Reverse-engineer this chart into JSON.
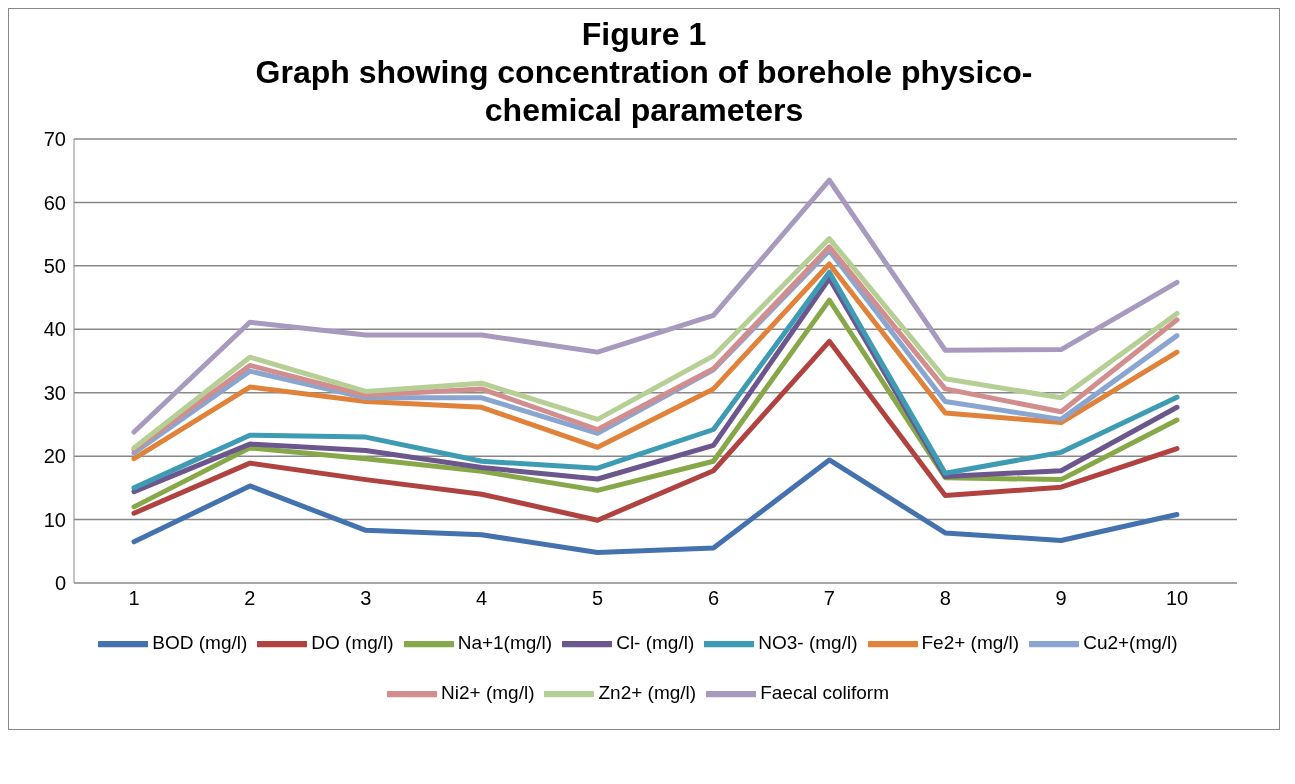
{
  "chart_data": {
    "type": "line",
    "title": "Figure 1",
    "subtitle": "Graph showing concentration of borehole physico-chemical parameters",
    "categories": [
      "1",
      "2",
      "3",
      "4",
      "5",
      "6",
      "7",
      "8",
      "9",
      "10"
    ],
    "series": [
      {
        "name": "BOD (mg/l)",
        "color": "#4372ae",
        "values": [
          6.5,
          15.3,
          8.3,
          7.6,
          4.8,
          5.5,
          19.4,
          7.9,
          6.7,
          10.8
        ]
      },
      {
        "name": "DO (mg/l)",
        "color": "#b0423f",
        "values": [
          11,
          18.9,
          16.3,
          14,
          9.9,
          17.7,
          38.1,
          13.8,
          15.1,
          21.2
        ]
      },
      {
        "name": "Na+1(mg/l)",
        "color": "#86a848",
        "values": [
          12,
          21.3,
          19.6,
          17.6,
          14.6,
          19.2,
          44.6,
          16.6,
          16.3,
          25.7
        ]
      },
      {
        "name": "Cl- (mg/l)",
        "color": "#6c568e",
        "values": [
          14.4,
          21.9,
          20.9,
          18.2,
          16.4,
          21.7,
          48,
          16.8,
          17.7,
          27.7
        ]
      },
      {
        "name": "NO3- (mg/l)",
        "color": "#3d9bb3",
        "values": [
          15,
          23.3,
          23,
          19.2,
          18.1,
          24.2,
          49,
          17.3,
          20.6,
          29.3
        ]
      },
      {
        "name": "Fe2+ (mg/l)",
        "color": "#e0823a",
        "values": [
          19.6,
          30.9,
          28.6,
          27.7,
          21.4,
          30.6,
          50.3,
          26.8,
          25.3,
          36.4
        ]
      },
      {
        "name": "Cu2+(mg/l)",
        "color": "#8aa6d0",
        "values": [
          20.5,
          33.4,
          29.2,
          29.2,
          23.6,
          33.6,
          52.4,
          28.6,
          25.8,
          39
        ]
      },
      {
        "name": "Ni2+ (mg/l)",
        "color": "#d28e8e",
        "values": [
          21,
          34.3,
          29.6,
          30.6,
          24.2,
          33.8,
          53,
          30.6,
          27,
          41.5
        ]
      },
      {
        "name": "Zn2+ (mg/l)",
        "color": "#b5cf95",
        "values": [
          21.3,
          35.6,
          30.2,
          31.5,
          25.8,
          35.8,
          54.3,
          32.2,
          29.2,
          42.5
        ]
      },
      {
        "name": "Faecal coliform",
        "color": "#a79abe",
        "values": [
          23.8,
          41.1,
          39.1,
          39.1,
          36.4,
          42.2,
          63.5,
          36.7,
          36.8,
          47.4
        ]
      }
    ],
    "ylim": [
      0,
      70
    ],
    "yticks": [
      0,
      10,
      20,
      30,
      40,
      50,
      60,
      70
    ],
    "grid": "y",
    "legend": "bottom",
    "marker": "none",
    "line_style": "solid"
  }
}
